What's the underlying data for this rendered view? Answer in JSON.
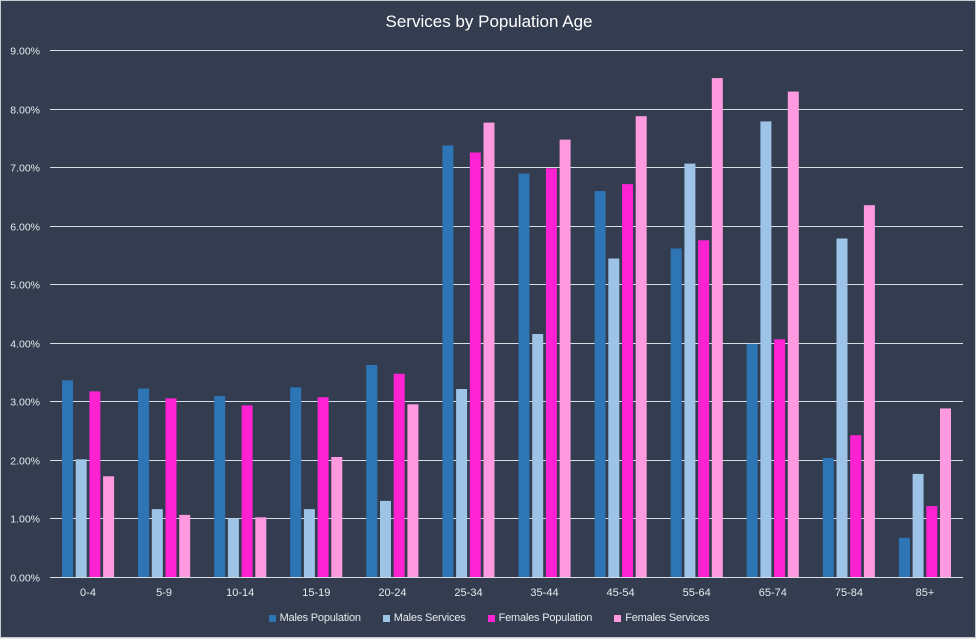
{
  "chart_data": {
    "type": "bar",
    "title": "Services by Population Age",
    "xlabel": "",
    "ylabel": "",
    "ylim": [
      0,
      0.09
    ],
    "yticks": [
      0,
      0.01,
      0.02,
      0.03,
      0.04,
      0.05,
      0.06,
      0.07,
      0.08,
      0.09
    ],
    "ytick_labels": [
      "0.00%",
      "1.00%",
      "2.00%",
      "3.00%",
      "4.00%",
      "5.00%",
      "6.00%",
      "7.00%",
      "8.00%",
      "9.00%"
    ],
    "grid": true,
    "legend_position": "bottom",
    "categories": [
      "0-4",
      "5-9",
      "10-14",
      "15-19",
      "20-24",
      "25-34",
      "35-44",
      "45-54",
      "55-64",
      "65-74",
      "75-84",
      "85+"
    ],
    "series": [
      {
        "name": "Males Population",
        "color": "#2e75b6",
        "values": [
          0.0336,
          0.0322,
          0.0309,
          0.0324,
          0.0362,
          0.0737,
          0.0689,
          0.0659,
          0.0561,
          0.0398,
          0.0203,
          0.0067
        ]
      },
      {
        "name": "Males Services",
        "color": "#9dc3e6",
        "values": [
          0.0201,
          0.0116,
          0.01,
          0.0116,
          0.013,
          0.0321,
          0.0415,
          0.0544,
          0.0706,
          0.0778,
          0.0578,
          0.0176
        ]
      },
      {
        "name": "Females Population",
        "color": "#ff22d2",
        "values": [
          0.0317,
          0.0305,
          0.0293,
          0.0307,
          0.0347,
          0.0725,
          0.0698,
          0.0671,
          0.0575,
          0.0406,
          0.0242,
          0.0121
        ]
      },
      {
        "name": "Females Services",
        "color": "#ff99e0",
        "values": [
          0.0172,
          0.0106,
          0.0102,
          0.0205,
          0.0295,
          0.0776,
          0.0747,
          0.0787,
          0.0852,
          0.0829,
          0.0635,
          0.0288
        ]
      }
    ]
  }
}
